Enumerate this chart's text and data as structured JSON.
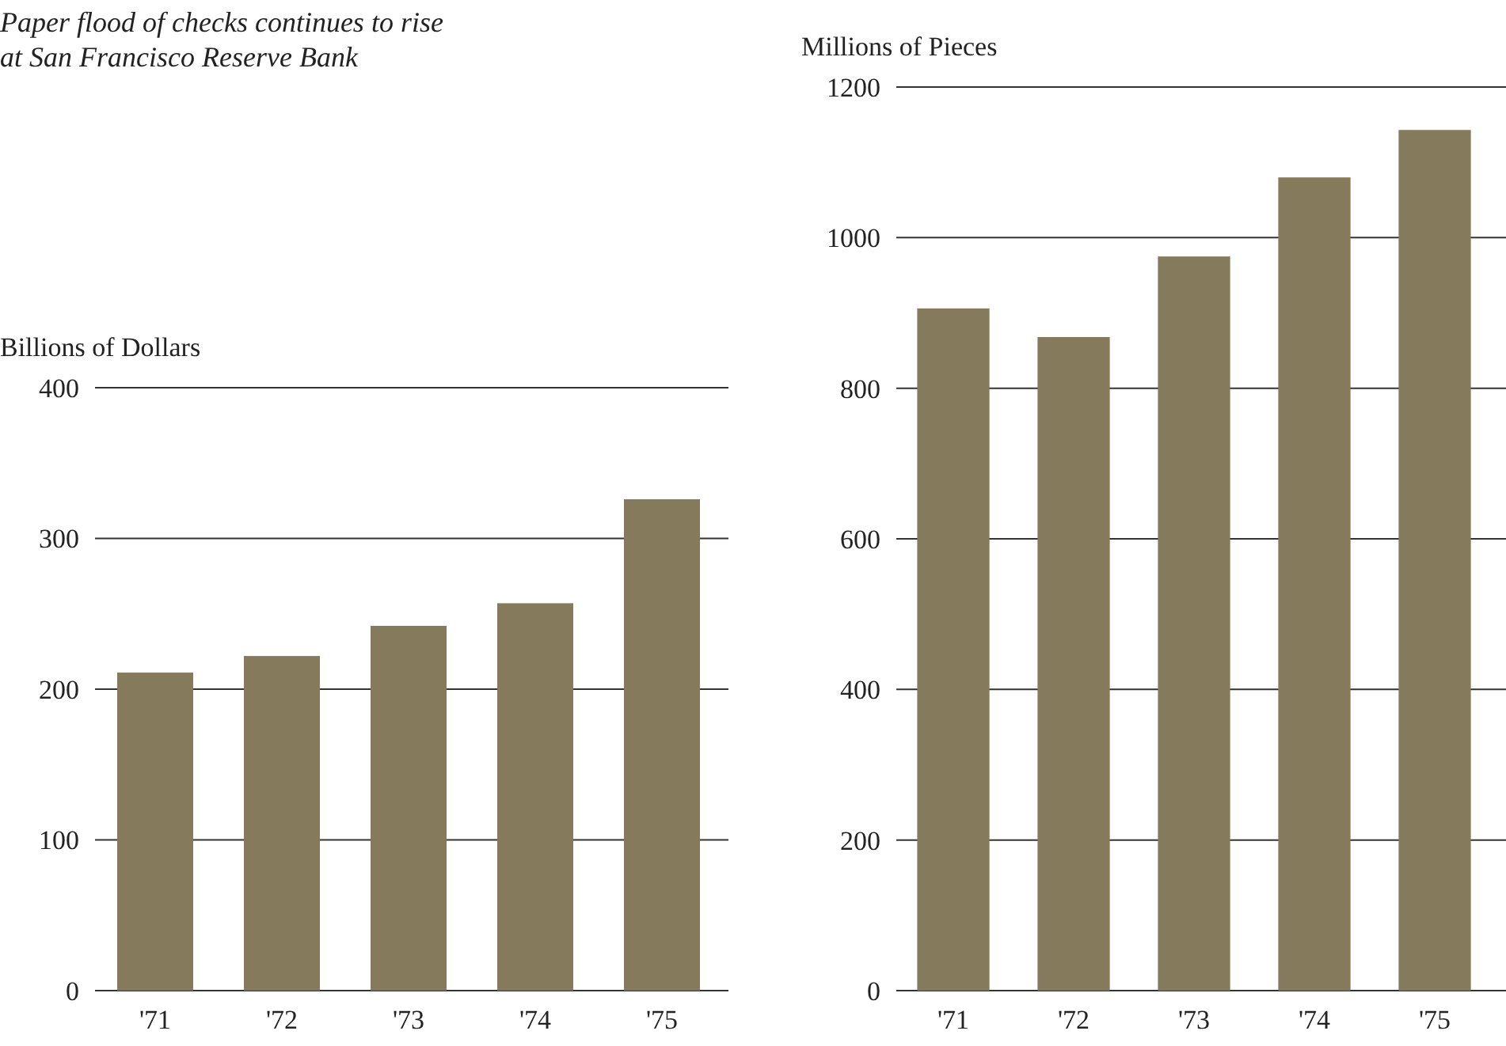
{
  "chart_data": [
    {
      "type": "bar",
      "title": "Paper flood of checks continues to rise at San Francisco Reserve Bank",
      "ylabel": "Billions of Dollars",
      "categories": [
        "'71",
        "'72",
        "'73",
        "'74",
        "'75"
      ],
      "values": [
        211,
        222,
        242,
        257,
        326
      ],
      "color": "#857a5c",
      "ylim": [
        0,
        400
      ],
      "yticks": [
        0,
        100,
        200,
        300,
        400
      ],
      "grid": "y"
    },
    {
      "type": "bar",
      "ylabel": "Millions of Pieces",
      "categories": [
        "'71",
        "'72",
        "'73",
        "'74",
        "'75"
      ],
      "values": [
        906,
        868,
        975,
        1080,
        1143
      ],
      "color": "#857a5c",
      "ylim": [
        0,
        1200
      ],
      "yticks": [
        0,
        200,
        400,
        600,
        800,
        1000,
        1200
      ],
      "grid": "y"
    }
  ]
}
